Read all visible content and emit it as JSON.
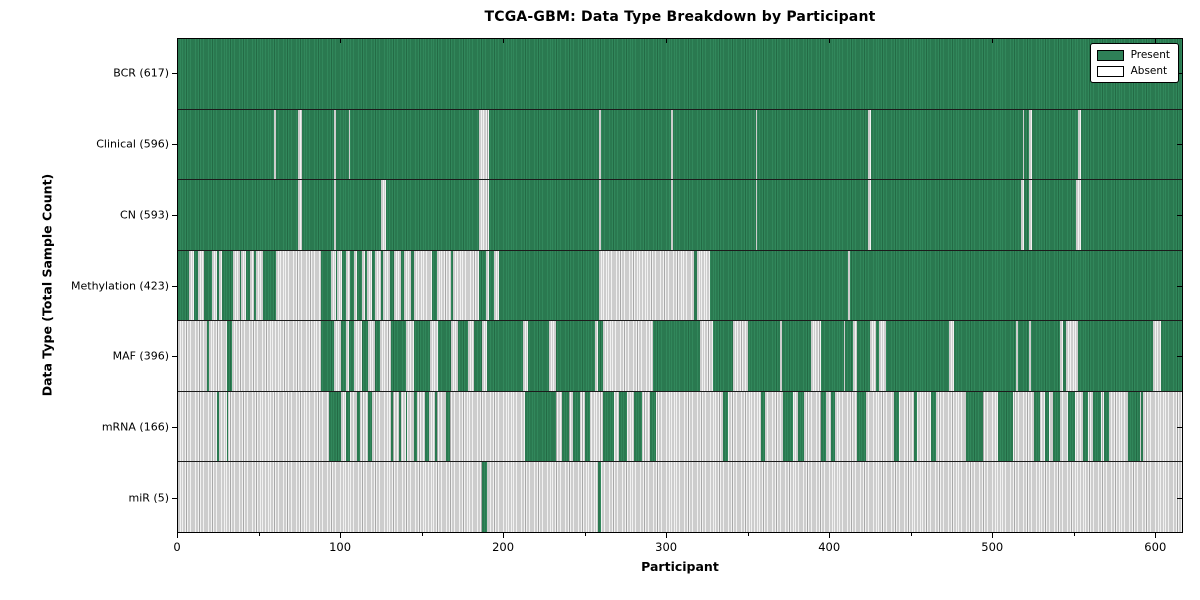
{
  "chart_data": {
    "type": "heatmap",
    "title": "TCGA-GBM: Data Type Breakdown by Participant",
    "xlabel": "Participant",
    "ylabel": "Data Type (Total Sample Count)",
    "xlim": [
      0,
      617
    ],
    "n_participants": 617,
    "x_major_ticks": [
      0,
      100,
      200,
      300,
      400,
      500,
      600
    ],
    "x_minor_ticks": [
      50,
      150,
      250,
      350,
      450,
      550
    ],
    "grid": false,
    "legend": {
      "position": "upper right",
      "entries": [
        {
          "label": "Present",
          "color": "#2e8057"
        },
        {
          "label": "Absent",
          "color": "#ffffff"
        }
      ]
    },
    "colors": {
      "present_fill": "#31875b",
      "present_edge": "#236b45",
      "absent_fill": "#f2f2f2",
      "absent_edge": "#a8a8a8"
    },
    "rows": [
      {
        "name": "BCR",
        "label": "BCR (617)",
        "present_count": 617,
        "base": "present",
        "overlay": "absent",
        "intervals": []
      },
      {
        "name": "Clinical",
        "label": "Clinical (596)",
        "present_count": 596,
        "base": "present",
        "overlay": "absent",
        "intervals": [
          [
            59,
            59
          ],
          [
            74,
            75
          ],
          [
            96,
            96
          ],
          [
            105,
            105
          ],
          [
            185,
            190
          ],
          [
            259,
            259
          ],
          [
            303,
            303
          ],
          [
            355,
            355
          ],
          [
            424,
            425
          ],
          [
            519,
            519
          ],
          [
            523,
            524
          ],
          [
            553,
            554
          ]
        ]
      },
      {
        "name": "CN",
        "label": "CN (593)",
        "present_count": 593,
        "base": "present",
        "overlay": "absent",
        "intervals": [
          [
            74,
            75
          ],
          [
            96,
            96
          ],
          [
            125,
            127
          ],
          [
            185,
            190
          ],
          [
            259,
            259
          ],
          [
            303,
            303
          ],
          [
            355,
            355
          ],
          [
            424,
            425
          ],
          [
            518,
            519
          ],
          [
            523,
            524
          ],
          [
            552,
            554
          ]
        ]
      },
      {
        "name": "Methylation",
        "label": "Methylation (423)",
        "present_count": 423,
        "base": "present",
        "overlay": "absent",
        "intervals": [
          [
            7,
            9
          ],
          [
            12,
            15
          ],
          [
            21,
            23
          ],
          [
            25,
            26
          ],
          [
            34,
            37
          ],
          [
            39,
            41
          ],
          [
            44,
            46
          ],
          [
            48,
            51
          ],
          [
            60,
            87
          ],
          [
            94,
            96
          ],
          [
            98,
            100
          ],
          [
            103,
            105
          ],
          [
            108,
            109
          ],
          [
            113,
            114
          ],
          [
            116,
            118
          ],
          [
            121,
            124
          ],
          [
            126,
            129
          ],
          [
            133,
            136
          ],
          [
            139,
            142
          ],
          [
            145,
            155
          ],
          [
            159,
            167
          ],
          [
            169,
            184
          ],
          [
            189,
            190
          ],
          [
            194,
            196
          ],
          [
            259,
            316
          ],
          [
            319,
            326
          ],
          [
            412,
            412
          ]
        ]
      },
      {
        "name": "MAF",
        "label": "MAF (396)",
        "present_count": 396,
        "base": "present",
        "overlay": "absent",
        "intervals": [
          [
            0,
            17
          ],
          [
            19,
            29
          ],
          [
            33,
            87
          ],
          [
            96,
            99
          ],
          [
            103,
            104
          ],
          [
            108,
            112
          ],
          [
            117,
            120
          ],
          [
            124,
            130
          ],
          [
            140,
            144
          ],
          [
            155,
            159
          ],
          [
            168,
            171
          ],
          [
            178,
            181
          ],
          [
            187,
            189
          ],
          [
            212,
            214
          ],
          [
            228,
            231
          ],
          [
            256,
            257
          ],
          [
            261,
            291
          ],
          [
            321,
            328
          ],
          [
            341,
            349
          ],
          [
            370,
            370
          ],
          [
            389,
            394
          ],
          [
            409,
            409
          ],
          [
            415,
            416
          ],
          [
            425,
            428
          ],
          [
            431,
            434
          ],
          [
            474,
            476
          ],
          [
            515,
            515
          ],
          [
            523,
            523
          ],
          [
            542,
            543
          ],
          [
            546,
            552
          ],
          [
            599,
            603
          ]
        ]
      },
      {
        "name": "mRNA",
        "label": "mRNA (166)",
        "present_count": 166,
        "base": "absent",
        "overlay": "present",
        "intervals": [
          [
            24,
            24
          ],
          [
            30,
            30
          ],
          [
            93,
            99
          ],
          [
            103,
            105
          ],
          [
            110,
            111
          ],
          [
            117,
            118
          ],
          [
            131,
            131
          ],
          [
            136,
            136
          ],
          [
            140,
            140
          ],
          [
            145,
            146
          ],
          [
            152,
            153
          ],
          [
            158,
            158
          ],
          [
            165,
            166
          ],
          [
            213,
            231
          ],
          [
            236,
            239
          ],
          [
            243,
            246
          ],
          [
            250,
            252
          ],
          [
            261,
            267
          ],
          [
            271,
            275
          ],
          [
            280,
            284
          ],
          [
            290,
            293
          ],
          [
            335,
            337
          ],
          [
            358,
            360
          ],
          [
            372,
            377
          ],
          [
            381,
            384
          ],
          [
            395,
            397
          ],
          [
            401,
            403
          ],
          [
            417,
            422
          ],
          [
            440,
            442
          ],
          [
            452,
            453
          ],
          [
            463,
            465
          ],
          [
            484,
            494
          ],
          [
            504,
            512
          ],
          [
            526,
            529
          ],
          [
            533,
            534
          ],
          [
            538,
            541
          ],
          [
            547,
            550
          ],
          [
            556,
            558
          ],
          [
            562,
            566
          ],
          [
            569,
            571
          ],
          [
            584,
            590
          ],
          [
            592,
            592
          ]
        ]
      },
      {
        "name": "miR",
        "label": "miR (5)",
        "present_count": 5,
        "base": "absent",
        "overlay": "present",
        "intervals": [
          [
            187,
            189
          ],
          [
            258,
            259
          ]
        ]
      }
    ]
  }
}
